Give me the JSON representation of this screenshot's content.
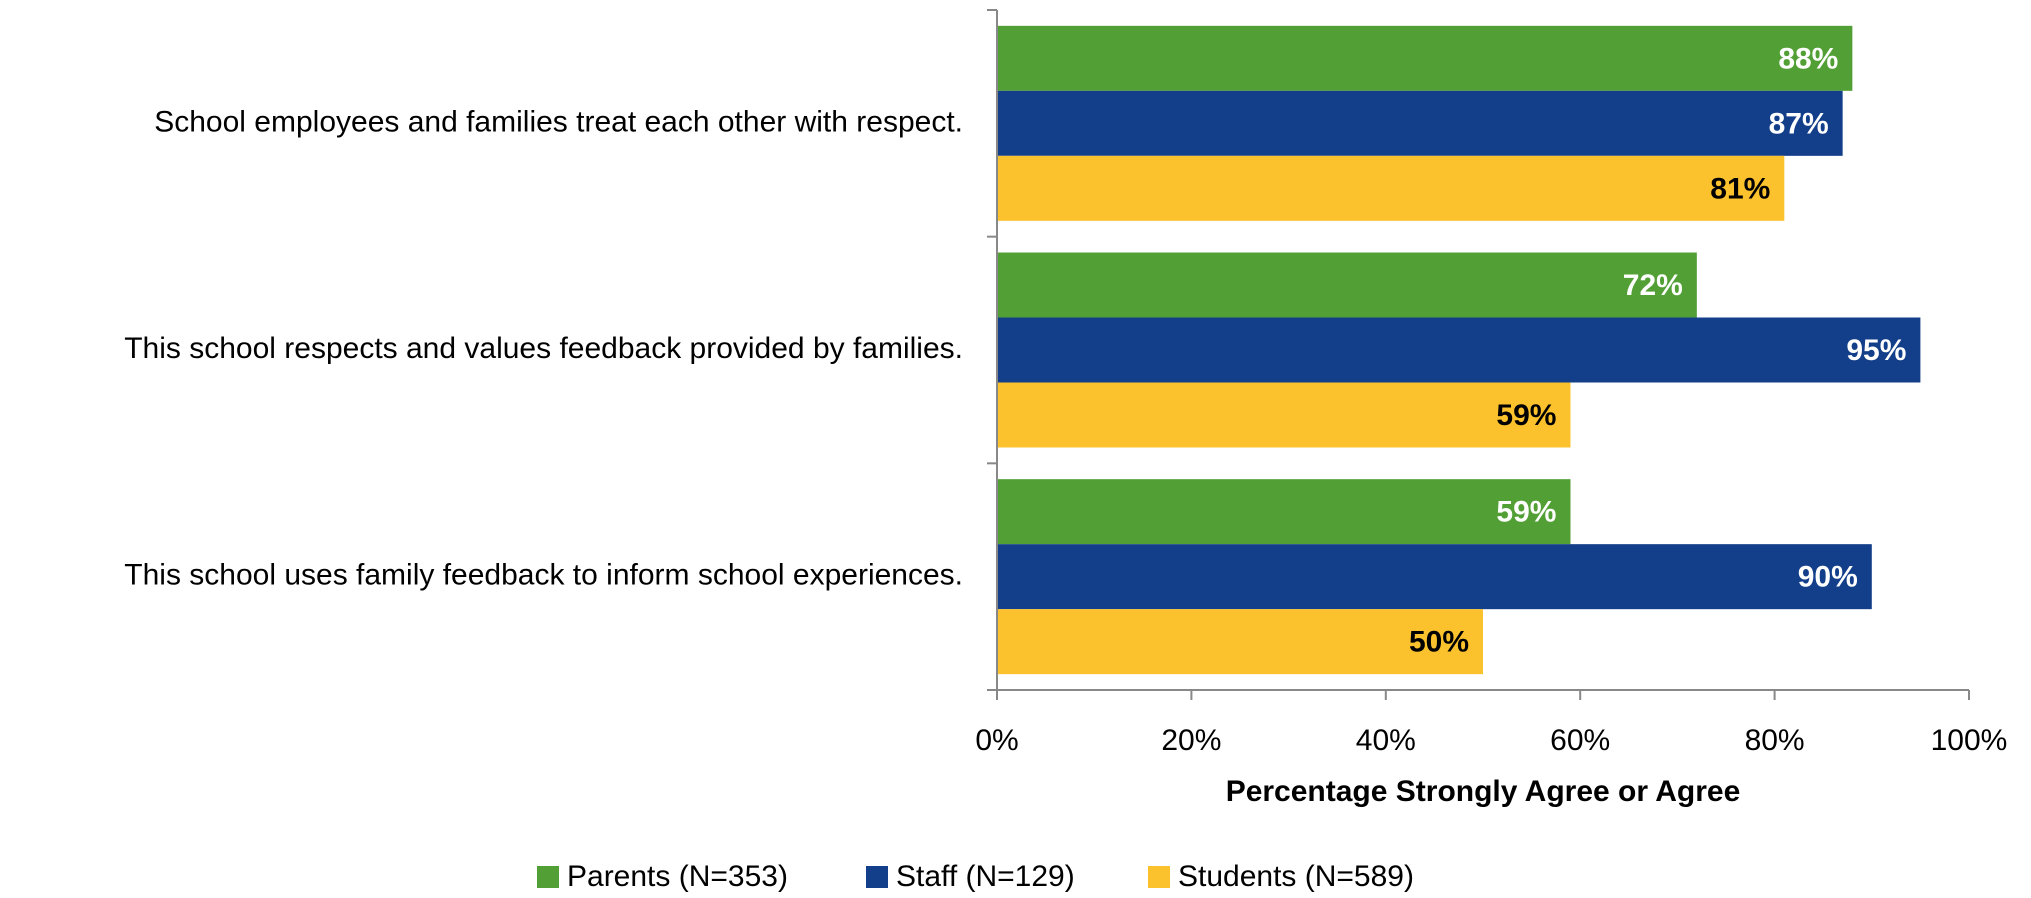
{
  "chart_data": {
    "type": "hbar",
    "categories": [
      "School employees and families treat each other with respect.",
      "This school respects and values feedback provided by families.",
      "This school uses family feedback to inform school experiences."
    ],
    "series": [
      {
        "name": "Parents (N=353)",
        "color": "#52a035",
        "values": [
          88,
          72,
          59
        ],
        "value_labels": [
          "88%",
          "72%",
          "59%"
        ]
      },
      {
        "name": "Staff (N=129)",
        "color": "#133f8a",
        "values": [
          87,
          95,
          90
        ],
        "value_labels": [
          "87%",
          "95%",
          "90%"
        ]
      },
      {
        "name": "Students (N=589)",
        "color": "#fcc22e",
        "values": [
          81,
          59,
          50
        ],
        "value_labels": [
          "81%",
          "59%",
          "50%"
        ]
      }
    ],
    "x_label": "Percentage Strongly Agree or Agree",
    "xlim": [
      0,
      100
    ],
    "xticks": [
      {
        "value": 0,
        "label": "0%"
      },
      {
        "value": 20,
        "label": "20%"
      },
      {
        "value": 40,
        "label": "40%"
      },
      {
        "value": 60,
        "label": "60%"
      },
      {
        "value": 80,
        "label": "80%"
      },
      {
        "value": 100,
        "label": "100%"
      }
    ],
    "label_colors": [
      "#ffffff",
      "#ffffff",
      "#000000"
    ],
    "legend": "bottom"
  }
}
